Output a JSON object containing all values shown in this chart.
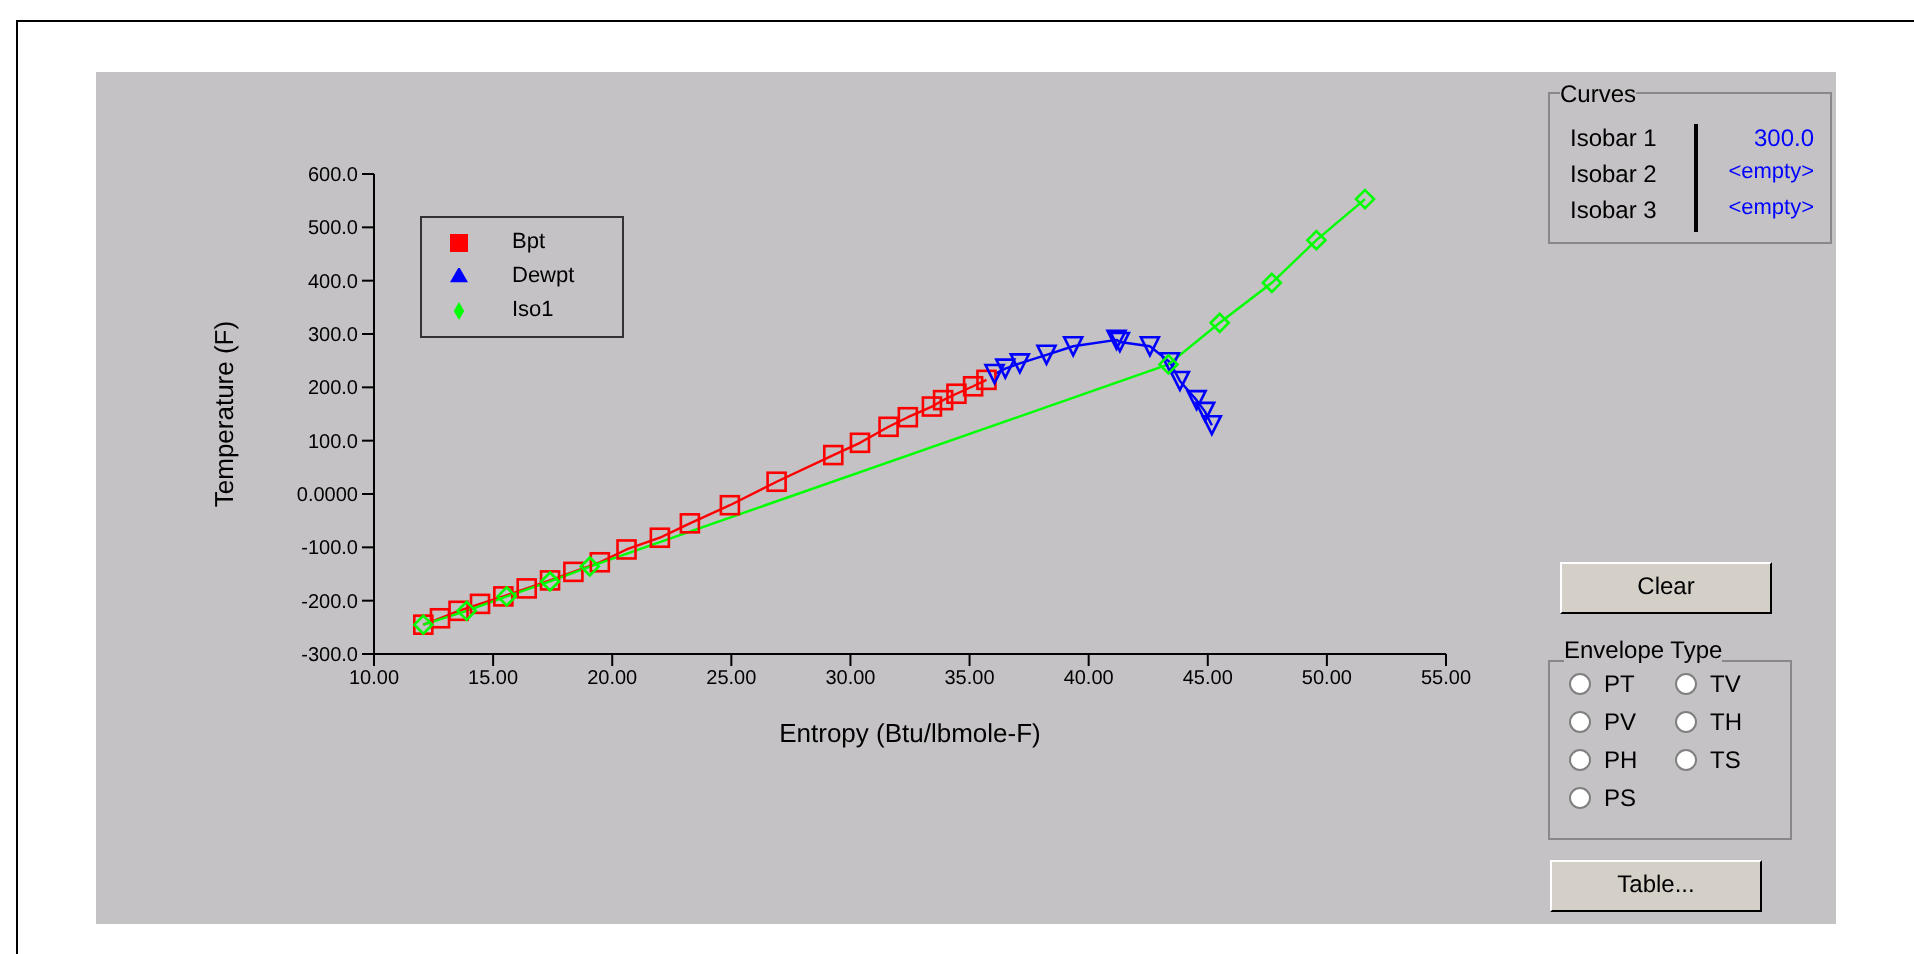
{
  "chart_data": {
    "type": "line",
    "xlabel": "Entropy (Btu/lbmole-F)",
    "ylabel": "Temperature (F)",
    "xlim": [
      10,
      55
    ],
    "xticks": [
      {
        "value": 10,
        "label": "10.00"
      },
      {
        "value": 15,
        "label": "15.00"
      },
      {
        "value": 20,
        "label": "20.00"
      },
      {
        "value": 25,
        "label": "25.00"
      },
      {
        "value": 30,
        "label": "30.00"
      },
      {
        "value": 35,
        "label": "35.00"
      },
      {
        "value": 40,
        "label": "40.00"
      },
      {
        "value": 45,
        "label": "45.00"
      },
      {
        "value": 50,
        "label": "50.00"
      },
      {
        "value": 55,
        "label": "55.00"
      }
    ],
    "ylim": [
      -300,
      600
    ],
    "yticks": [
      {
        "value": -300,
        "label": "-300.0"
      },
      {
        "value": -200,
        "label": "-200.0"
      },
      {
        "value": -100,
        "label": "-100.0"
      },
      {
        "value": 0,
        "label": "0.0000"
      },
      {
        "value": 100,
        "label": "100.0"
      },
      {
        "value": 200,
        "label": "200.0"
      },
      {
        "value": 300,
        "label": "300.0"
      },
      {
        "value": 400,
        "label": "400.0"
      },
      {
        "value": 500,
        "label": "500.0"
      },
      {
        "value": 600,
        "label": "600.0"
      }
    ],
    "legend": "top left",
    "series": [
      {
        "name": "Bpt",
        "color": "#ff0000",
        "marker": "square",
        "x": [
          12.07,
          12.77,
          13.55,
          14.45,
          15.43,
          16.41,
          17.39,
          18.37,
          19.48,
          20.6,
          22.0,
          23.26,
          24.94,
          26.9,
          29.28,
          30.4,
          31.6,
          32.41,
          33.42,
          33.89,
          34.45,
          35.15,
          35.71
        ],
        "values": [
          -245,
          -233,
          -219,
          -206,
          -192,
          -177,
          -162,
          -146,
          -128,
          -104,
          -82,
          -55,
          -21,
          23,
          73,
          96,
          126,
          144,
          164,
          176,
          188,
          202,
          214
        ]
      },
      {
        "name": "Dewpt",
        "color": "#0000ff",
        "marker": "triangle",
        "x": [
          36.05,
          36.5,
          37.11,
          38.23,
          39.35,
          41.17,
          41.31,
          42.57,
          43.41,
          43.83,
          44.53,
          44.89,
          45.17
        ],
        "values": [
          225,
          235,
          245,
          261,
          277,
          289,
          285,
          277,
          247,
          212,
          176,
          154,
          129
        ]
      },
      {
        "name": "Iso1",
        "color": "#00ff00",
        "marker": "diamond",
        "x": [
          12.07,
          13.89,
          15.57,
          17.39,
          19.06,
          43.35,
          45.5,
          47.69,
          49.56,
          51.6
        ],
        "values": [
          -245,
          -219,
          -192,
          -164,
          -136,
          243,
          321,
          396,
          476,
          553
        ]
      }
    ],
    "annotations": [
      "Curves",
      "Isobar 1",
      "300.0",
      "Isobar 2",
      "<empty>",
      "Isobar 3",
      "<empty>",
      "Clear",
      "Envelope Type",
      "PT",
      "TV",
      "PV",
      "TH",
      "PH",
      "TS",
      "PS",
      "Table..."
    ]
  }
}
